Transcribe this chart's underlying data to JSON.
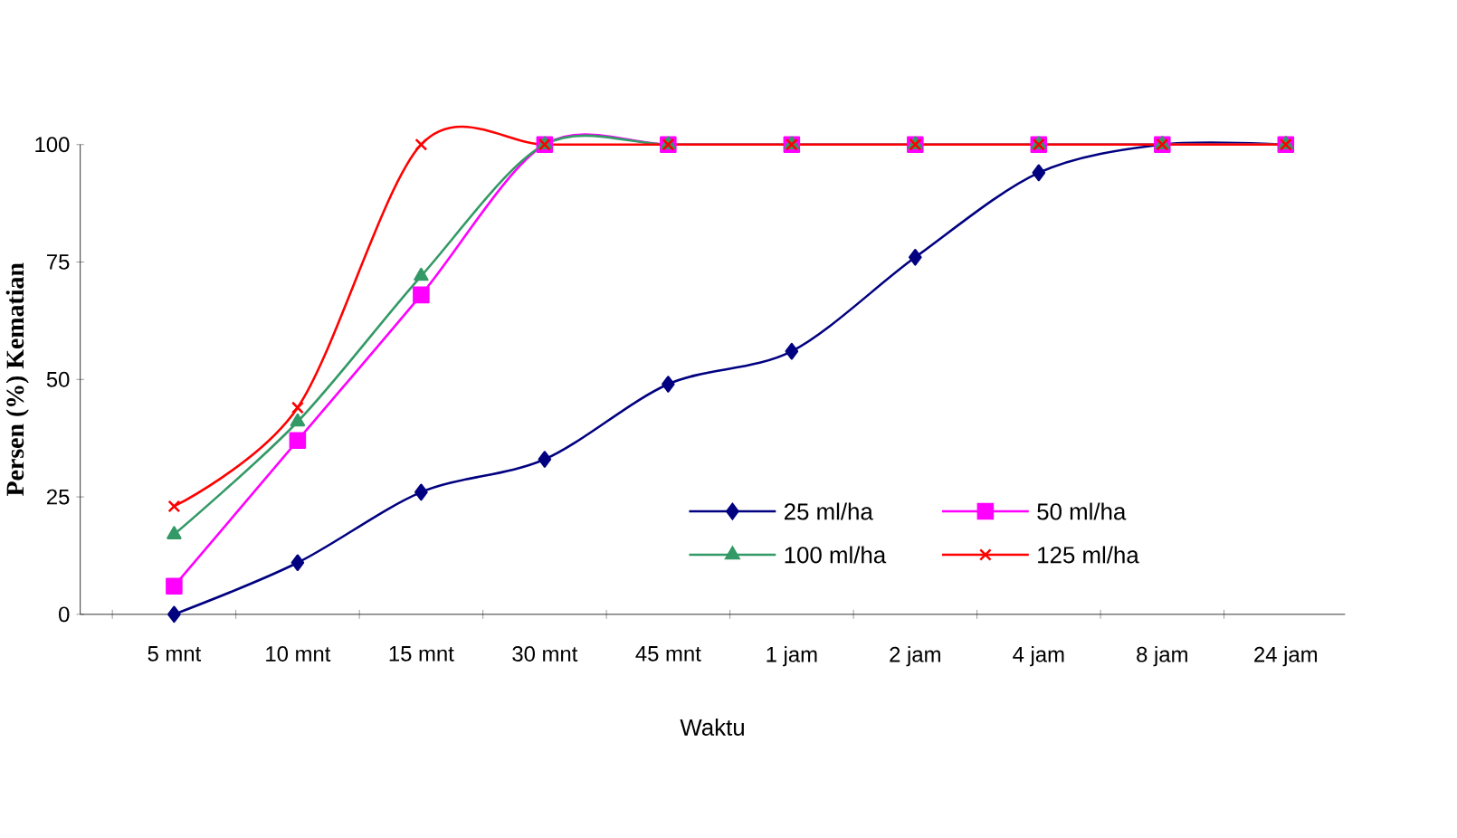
{
  "chart_data": {
    "type": "line",
    "xlabel": "Waktu",
    "ylabel": "Persen (%) Kematian",
    "categories": [
      "5 mnt",
      "10 mnt",
      "15 mnt",
      "30 mnt",
      "45 mnt",
      "1 jam",
      "2 jam",
      "4 jam",
      "8 jam",
      "24 jam"
    ],
    "series": [
      {
        "name": "25 ml/ha",
        "color": "#000080",
        "marker": "diamond",
        "values": [
          0,
          11,
          26,
          33,
          49,
          56,
          76,
          94,
          100,
          100
        ]
      },
      {
        "name": "50 ml/ha",
        "color": "#ff00ff",
        "marker": "square",
        "values": [
          6,
          37,
          68,
          100,
          100,
          100,
          100,
          100,
          100,
          100
        ]
      },
      {
        "name": "100 ml/ha",
        "color": "#339966",
        "marker": "triangle",
        "values": [
          17,
          41,
          72,
          100,
          100,
          100,
          100,
          100,
          100,
          100
        ]
      },
      {
        "name": "125 ml/ha",
        "color": "#ff0000",
        "marker": "cross",
        "values": [
          23,
          44,
          100,
          100,
          100,
          100,
          100,
          100,
          100,
          100
        ]
      }
    ],
    "ylim": [
      0,
      100
    ],
    "yticks": [
      0,
      25,
      50,
      75,
      100
    ],
    "legend": "bottom right",
    "line_style": "solid"
  }
}
